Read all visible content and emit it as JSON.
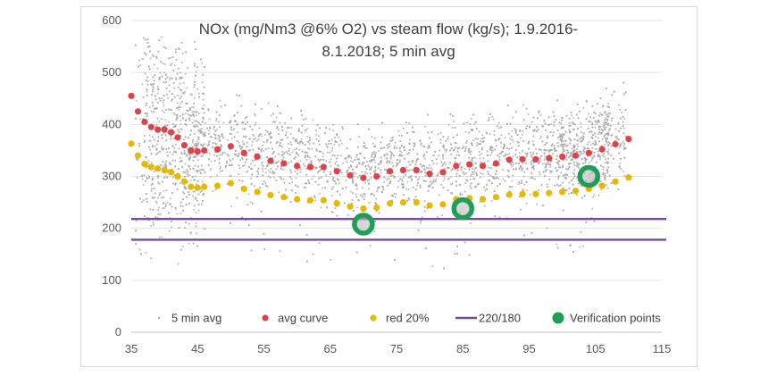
{
  "chart_data": {
    "type": "scatter",
    "title_lines": [
      "NOx (mg/Nm3 @6% O2) vs steam flow (kg/s); 1.9.2016-",
      "8.1.2018; 5 min avg"
    ],
    "xlim": [
      35,
      115
    ],
    "ylim": [
      0,
      600
    ],
    "xticks": [
      35,
      45,
      55,
      65,
      75,
      85,
      95,
      105,
      115
    ],
    "yticks": [
      0,
      100,
      200,
      300,
      400,
      500,
      600
    ],
    "grid": {
      "horizontal": true,
      "vertical": false
    },
    "legend_position": "bottom",
    "series": [
      {
        "name": "5 min avg",
        "color": "#a6a6a6",
        "marker": "small-dot",
        "cloud_x_range": [
          35,
          110
        ],
        "cloud_typical_y_range": [
          210,
          450
        ],
        "cloud_outer_y_range": [
          100,
          560
        ]
      },
      {
        "name": "avg curve",
        "color": "#e0424a",
        "marker": "dot",
        "x": [
          35,
          36,
          37,
          38,
          39,
          40,
          41,
          42,
          43,
          44,
          45,
          46,
          48,
          50,
          52,
          54,
          56,
          58,
          60,
          62,
          64,
          66,
          68,
          70,
          72,
          74,
          76,
          78,
          80,
          82,
          84,
          86,
          88,
          90,
          92,
          94,
          96,
          98,
          100,
          102,
          104,
          106,
          108,
          110
        ],
        "values": [
          455,
          425,
          405,
          395,
          390,
          390,
          385,
          375,
          360,
          350,
          348,
          350,
          352,
          358,
          345,
          338,
          330,
          325,
          320,
          318,
          318,
          310,
          302,
          297,
          300,
          310,
          312,
          312,
          305,
          308,
          320,
          323,
          320,
          325,
          332,
          333,
          333,
          335,
          338,
          340,
          345,
          352,
          362,
          372
        ]
      },
      {
        "name": "red 20%",
        "color": "#e6b800",
        "marker": "dot",
        "x": [
          35,
          36,
          37,
          38,
          39,
          40,
          41,
          42,
          43,
          44,
          45,
          46,
          48,
          50,
          52,
          54,
          56,
          58,
          60,
          62,
          64,
          66,
          68,
          70,
          72,
          74,
          76,
          78,
          80,
          82,
          84,
          86,
          88,
          90,
          92,
          94,
          96,
          98,
          100,
          102,
          104,
          106,
          108,
          110
        ],
        "values": [
          363,
          340,
          324,
          318,
          315,
          312,
          308,
          300,
          290,
          280,
          278,
          280,
          282,
          287,
          276,
          270,
          264,
          260,
          256,
          254,
          254,
          248,
          242,
          238,
          240,
          248,
          250,
          250,
          244,
          246,
          256,
          258,
          256,
          260,
          265,
          266,
          266,
          268,
          270,
          272,
          276,
          282,
          290,
          298
        ]
      },
      {
        "name": "220/180",
        "color": "#7a4a96",
        "marker": "line",
        "levels": [
          218,
          178
        ]
      },
      {
        "name": "Verification points",
        "color": "#1f9e57",
        "marker": "ring",
        "x": [
          70,
          85,
          104
        ],
        "values": [
          208,
          238,
          300
        ]
      }
    ]
  }
}
